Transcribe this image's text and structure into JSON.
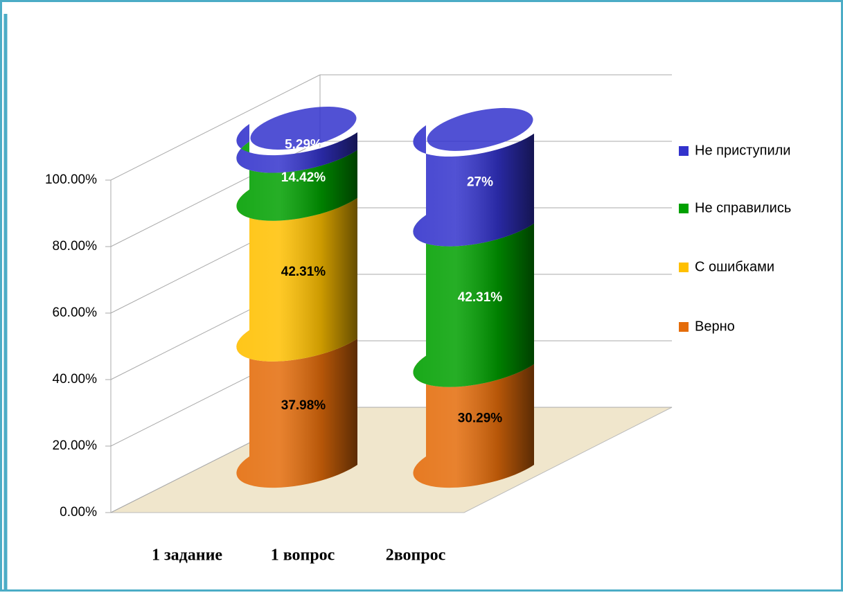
{
  "chart_data": {
    "type": "bar3d_stacked",
    "xlabel": "1 задание",
    "categories": [
      "1 вопрос",
      "2вопрос"
    ],
    "series": [
      {
        "name": "Верно",
        "color": "#e46c0a",
        "values": [
          37.98,
          30.29
        ],
        "value_labels": [
          "37.98%",
          "30.29%"
        ]
      },
      {
        "name": "С ошибками",
        "color": "#ffc000",
        "values": [
          42.31,
          null
        ],
        "value_labels": [
          "42.31%",
          null
        ]
      },
      {
        "name": "Не справились",
        "color": "#00a000",
        "values": [
          14.42,
          42.31
        ],
        "value_labels": [
          "14.42%",
          "42.31%"
        ]
      },
      {
        "name": "Не приступили",
        "color": "#3333cc",
        "values": [
          5.29,
          27
        ],
        "value_labels": [
          "5.29%",
          "27%"
        ]
      }
    ],
    "ylim": [
      0,
      100
    ],
    "yticks": [
      {
        "value": 0,
        "label": "0.00%"
      },
      {
        "value": 20,
        "label": "20.00%"
      },
      {
        "value": 40,
        "label": "40.00%"
      },
      {
        "value": 60,
        "label": "60.00%"
      },
      {
        "value": 80,
        "label": "80.00%"
      },
      {
        "value": 100,
        "label": "100.00%"
      }
    ],
    "grid": true,
    "legend": "right"
  }
}
